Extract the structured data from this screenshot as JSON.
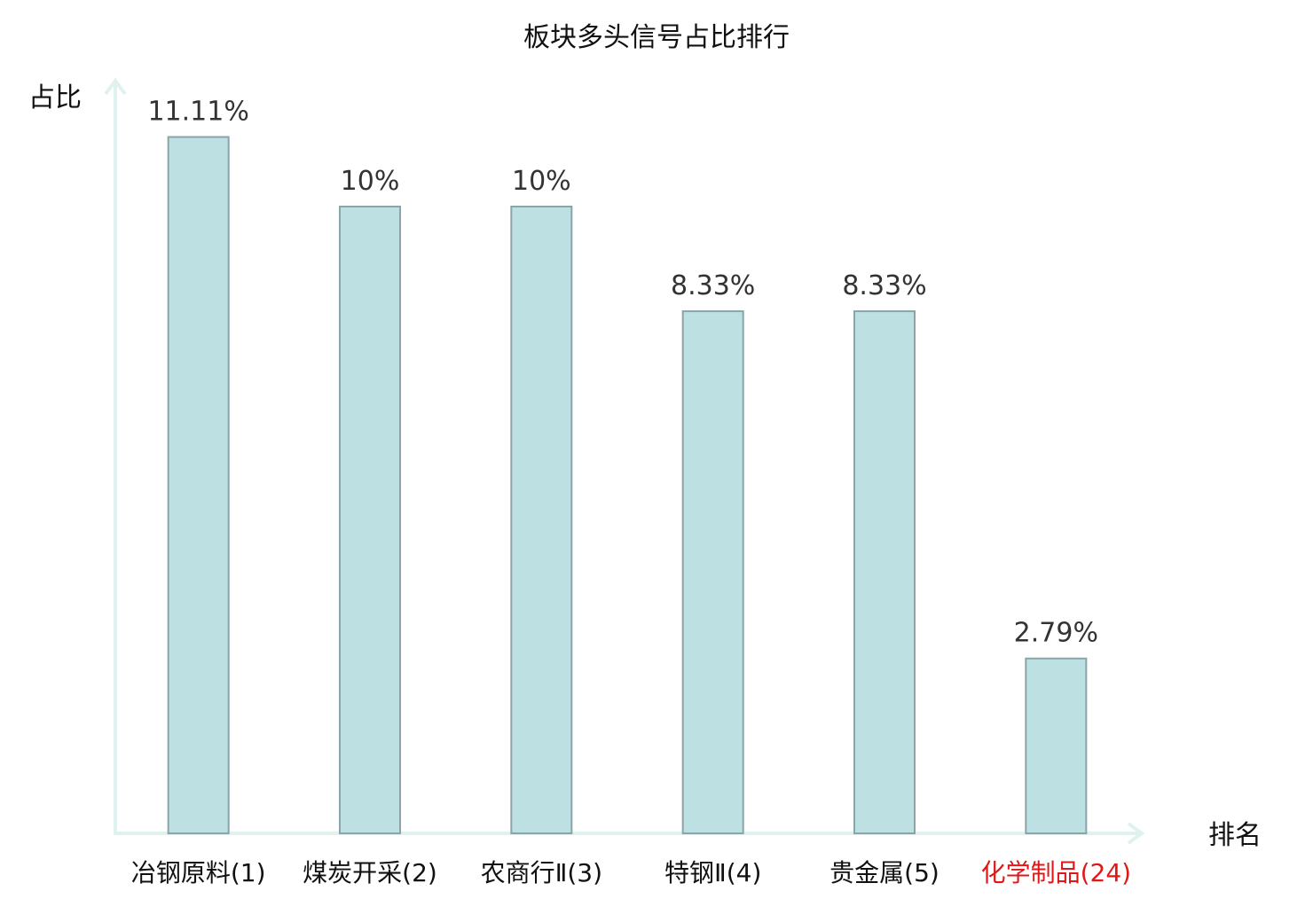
{
  "chart_data": {
    "type": "bar",
    "title": "板块多头信号占比排行",
    "ylabel": "占比",
    "xlabel": "排名",
    "categories": [
      "冶钢原料(1)",
      "煤炭开采(2)",
      "农商行Ⅱ(3)",
      "特钢Ⅱ(4)",
      "贵金属(5)",
      "化学制品(24)"
    ],
    "values": [
      11.11,
      10,
      10,
      8.33,
      8.33,
      2.79
    ],
    "value_labels": [
      "11.11%",
      "10%",
      "10%",
      "8.33%",
      "8.33%",
      "2.79%"
    ],
    "highlight_index": 5,
    "ylim": [
      0,
      12
    ],
    "grid": false,
    "colors": {
      "bar_fill": "#bde0e3",
      "bar_stroke": "#8aa4a8",
      "axis": "#dff2ef",
      "label": "#111111",
      "value_label": "#333333",
      "highlight": "#e01818"
    }
  }
}
